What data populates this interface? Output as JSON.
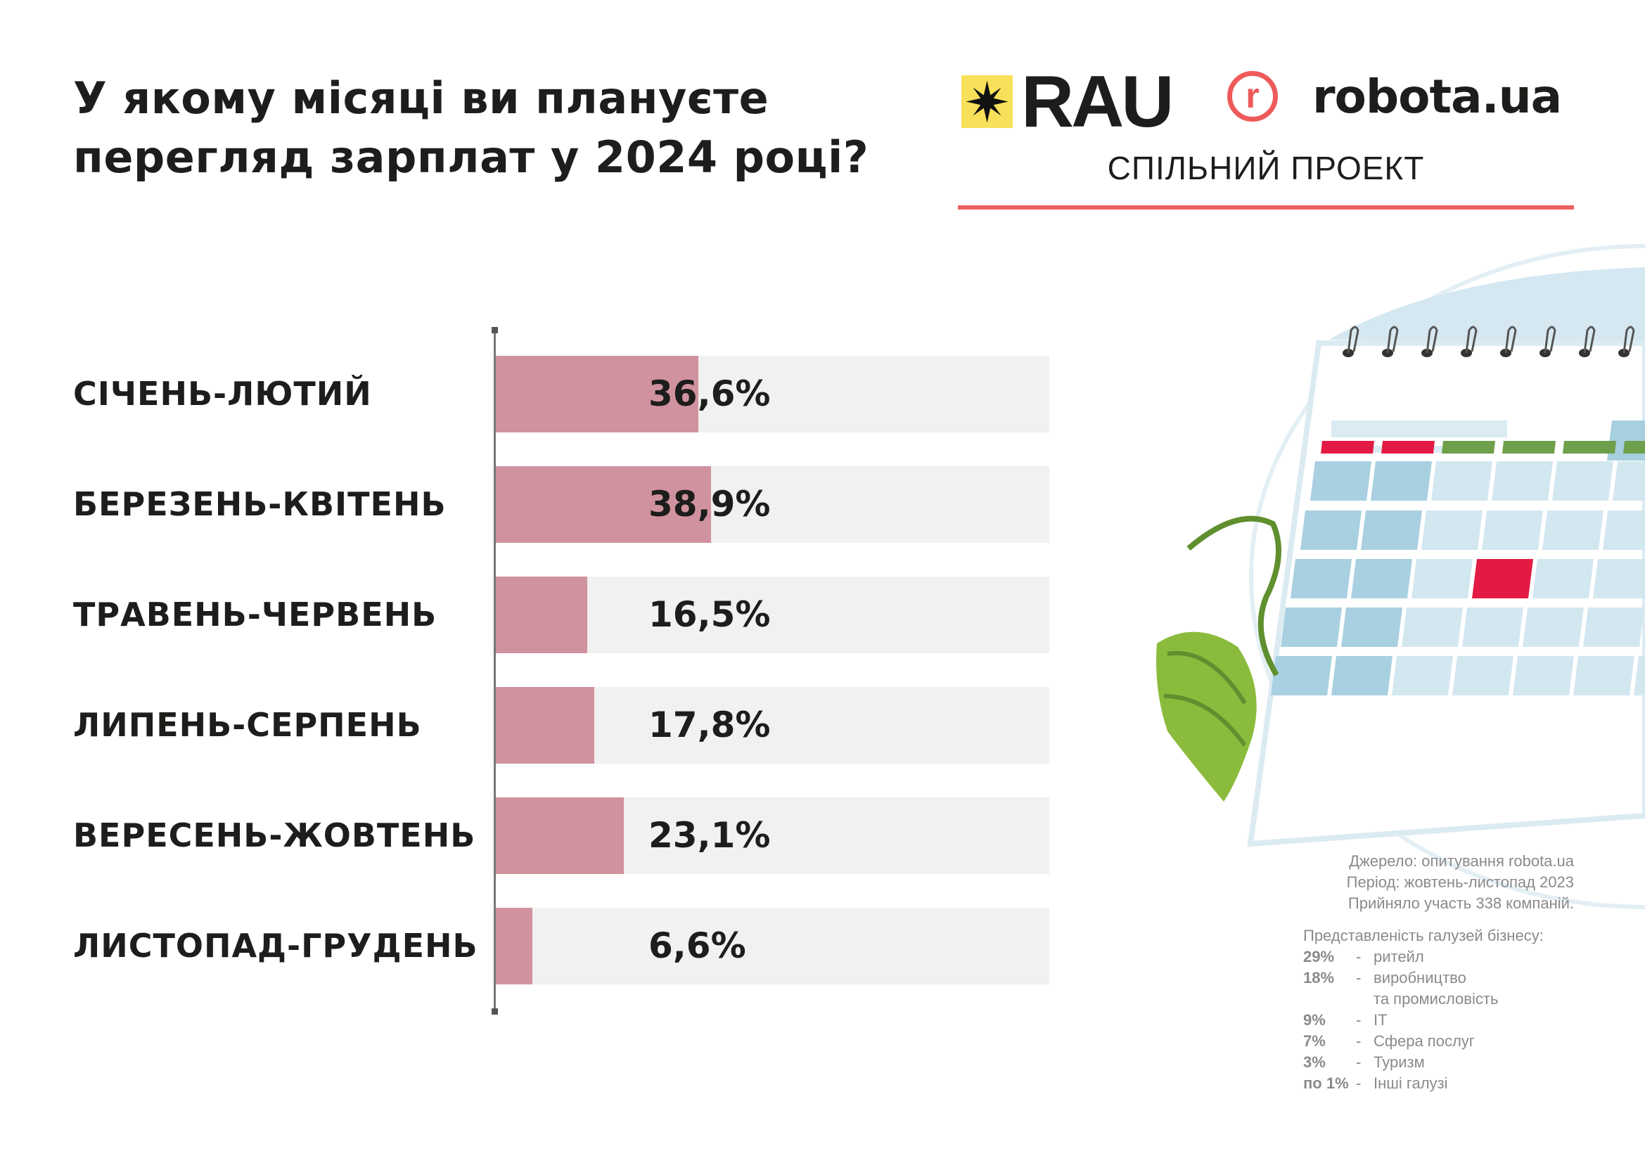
{
  "header": {
    "title_line1": "У якому місяці ви плануєте",
    "title_line2": "перегляд зарплат у 2024 році?",
    "logo_rau": "RAU",
    "logo_robota_letter": "r",
    "logo_robota": "robota.ua",
    "joint_project": "СПІЛЬНИЙ ПРОЕКТ"
  },
  "colors": {
    "bar": "#d0929e",
    "track": "#f0f1f0",
    "accent": "#ee5f5f",
    "rau_yellow": "#f8e05a"
  },
  "chart_data": {
    "type": "bar",
    "orientation": "horizontal",
    "title": "У якому місяці ви плануєте перегляд зарплат у 2024 році?",
    "categories": [
      "СІЧЕНЬ-ЛЮТИЙ",
      "БЕРЕЗЕНЬ-КВІТЕНЬ",
      "ТРАВЕНЬ-ЧЕРВЕНЬ",
      "ЛИПЕНЬ-СЕРПЕНЬ",
      "ВЕРЕСЕНЬ-ЖОВТЕНЬ",
      "ЛИСТОПАД-ГРУДЕНЬ"
    ],
    "values": [
      36.6,
      38.9,
      16.5,
      17.8,
      23.1,
      6.6
    ],
    "value_labels": [
      "36,6%",
      "38,9%",
      "16,5%",
      "17,8%",
      "23,1%",
      "6,6%"
    ],
    "xlim": [
      0,
      100
    ],
    "unit": "%",
    "grid": false,
    "legend": "none"
  },
  "notes": {
    "source": [
      "Джерело: опитування robota.ua",
      "Період: жовтень-листопад  2023",
      "Прийняло участь 338 компаній."
    ],
    "industries_title": "Представленість галузей бізнесу:",
    "industries": [
      {
        "pct": "29%",
        "dash": "-",
        "name": "ритейл"
      },
      {
        "pct": "18%",
        "dash": "-",
        "name": "виробництво"
      },
      {
        "pct": "",
        "dash": "",
        "name": "та промисловість"
      },
      {
        "pct": "9%",
        "dash": "-",
        "name": "IT"
      },
      {
        "pct": "7%",
        "dash": "-",
        "name": "Сфера послуг"
      },
      {
        "pct": "3%",
        "dash": "-",
        "name": "Туризм"
      },
      {
        "pct": "по 1%",
        "dash": "-",
        "name": "Інші галузі"
      }
    ]
  }
}
